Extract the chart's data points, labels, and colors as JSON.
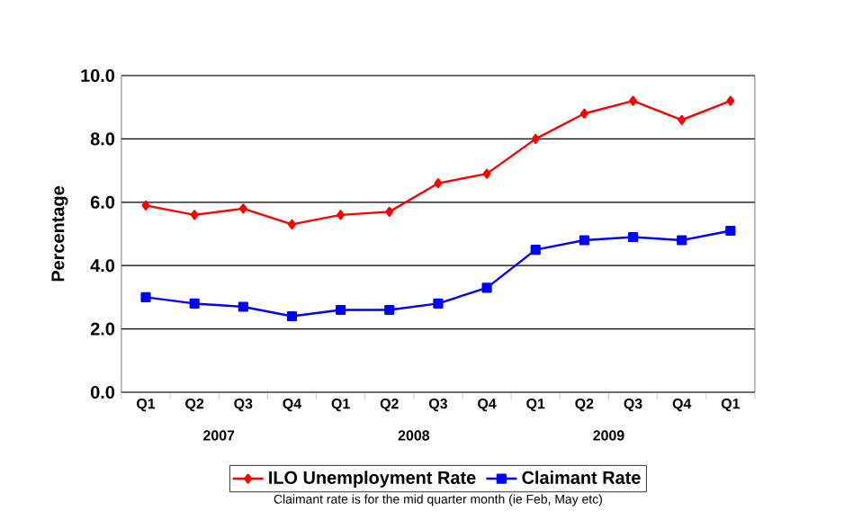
{
  "chart_data": {
    "type": "line",
    "ylabel": "Percentage",
    "categories": [
      "Q1",
      "Q2",
      "Q3",
      "Q4",
      "Q1",
      "Q2",
      "Q3",
      "Q4",
      "Q1",
      "Q2",
      "Q3",
      "Q4",
      "Q1"
    ],
    "series": [
      {
        "name": "ILO Unemployment Rate",
        "color": "#ff0000",
        "marker": "diamond",
        "values": [
          5.9,
          5.6,
          5.8,
          5.3,
          5.6,
          5.7,
          6.6,
          6.9,
          8.0,
          8.8,
          9.2,
          8.6,
          9.2
        ]
      },
      {
        "name": "Claimant Rate",
        "color": "#0000ff",
        "marker": "square",
        "values": [
          3.0,
          2.8,
          2.7,
          2.4,
          2.6,
          2.6,
          2.8,
          3.3,
          4.5,
          4.8,
          4.9,
          4.8,
          5.1
        ]
      }
    ],
    "ylim": [
      0,
      10
    ],
    "yticks": [
      {
        "value": 0,
        "label": "0.0"
      },
      {
        "value": 2,
        "label": "2.0"
      },
      {
        "value": 4,
        "label": "4.0"
      },
      {
        "value": 6,
        "label": "6.0"
      },
      {
        "value": 8,
        "label": "8.0"
      },
      {
        "value": 10,
        "label": "10.0"
      }
    ],
    "grid": "y",
    "legend": "bottom",
    "line_style": "solid",
    "annotations": [
      "2007",
      "2008",
      "2009",
      "Claimant rate is for the mid quarter month (ie Feb, May etc)"
    ]
  }
}
